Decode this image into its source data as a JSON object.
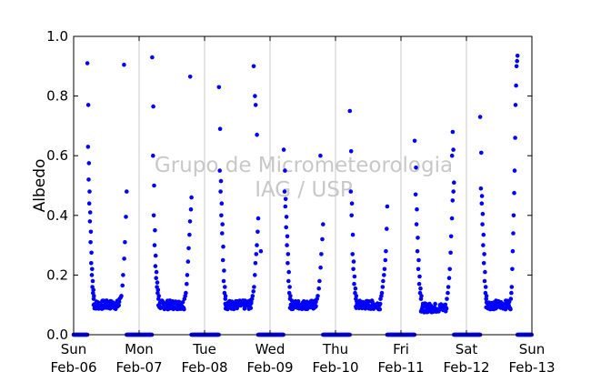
{
  "chart_data": {
    "type": "scatter",
    "ylabel": "Albedo",
    "ylim": [
      0.0,
      1.0
    ],
    "yticks": [
      "0.0",
      "0.2",
      "0.4",
      "0.6",
      "0.8",
      "1.0"
    ],
    "xlim": [
      0,
      7
    ],
    "x_unit": "days from Sun Feb-06",
    "xticks": [
      {
        "day": "Sun",
        "date": "Feb-06"
      },
      {
        "day": "Mon",
        "date": "Feb-07"
      },
      {
        "day": "Tue",
        "date": "Feb-08"
      },
      {
        "day": "Wed",
        "date": "Feb-09"
      },
      {
        "day": "Thu",
        "date": "Feb-10"
      },
      {
        "day": "Fri",
        "date": "Feb-11"
      },
      {
        "day": "Sat",
        "date": "Feb-12"
      },
      {
        "day": "Sun",
        "date": "Feb-13"
      }
    ],
    "grid": "vertical",
    "marker_color": "#0000ff",
    "watermark": [
      "Grupo de Micrometeorologia",
      "IAG / USP"
    ],
    "daytime_curves": [
      {
        "start": 0.21,
        "end": 0.81,
        "left_edge": [
          0.91,
          0.63,
          0.52,
          0.44,
          0.38,
          0.31,
          0.24,
          0.2,
          0.16,
          0.14,
          0.12
        ],
        "floor": 0.1,
        "right_edge": [
          0.12,
          0.13,
          0.2,
          0.31,
          0.48
        ],
        "spikes": [
          {
            "x": 0.77,
            "y": 0.905
          }
        ]
      },
      {
        "start": 1.2,
        "end": 1.8,
        "left_edge": [
          0.93,
          0.6,
          0.4,
          0.3,
          0.23,
          0.19,
          0.16,
          0.14,
          0.12
        ],
        "floor": 0.1,
        "right_edge": [
          0.12,
          0.14,
          0.2,
          0.29,
          0.38,
          0.46
        ],
        "spikes": [
          {
            "x": 1.78,
            "y": 0.865
          }
        ]
      },
      {
        "start": 2.22,
        "end": 2.82,
        "left_edge": [
          0.83,
          0.55,
          0.48,
          0.4,
          0.34,
          0.25,
          0.18,
          0.14,
          0.12
        ],
        "floor": 0.1,
        "right_edge": [
          0.11,
          0.13,
          0.16,
          0.24,
          0.3,
          0.39
        ],
        "spikes": [
          {
            "x": 2.75,
            "y": 0.9
          },
          {
            "x": 2.77,
            "y": 0.8
          },
          {
            "x": 2.78,
            "y": 0.77
          },
          {
            "x": 2.8,
            "y": 0.67
          }
        ]
      },
      {
        "start": 3.21,
        "end": 3.81,
        "left_edge": [
          0.62,
          0.48,
          0.43,
          0.36,
          0.3,
          0.24,
          0.18,
          0.14,
          0.12
        ],
        "floor": 0.1,
        "right_edge": [
          0.11,
          0.13,
          0.18,
          0.27,
          0.37
        ],
        "spikes": [
          {
            "x": 3.77,
            "y": 0.6
          },
          {
            "x": 2.86,
            "y": 0.28
          }
        ]
      },
      {
        "start": 4.22,
        "end": 4.79,
        "left_edge": [
          0.75,
          0.48,
          0.4,
          0.27,
          0.22,
          0.17,
          0.14,
          0.12
        ],
        "floor": 0.1,
        "right_edge": [
          0.12,
          0.14,
          0.18,
          0.22,
          0.28,
          0.43
        ],
        "spikes": []
      },
      {
        "start": 5.21,
        "end": 5.81,
        "left_edge": [
          0.65,
          0.47,
          0.37,
          0.28,
          0.22,
          0.17,
          0.14,
          0.12
        ],
        "floor": 0.09,
        "right_edge": [
          0.12,
          0.16,
          0.22,
          0.33,
          0.45,
          0.51
        ],
        "spikes": [
          {
            "x": 5.79,
            "y": 0.68
          },
          {
            "x": 5.8,
            "y": 0.62
          },
          {
            "x": 5.78,
            "y": 0.6
          }
        ]
      },
      {
        "start": 6.21,
        "end": 6.78,
        "left_edge": [
          0.73,
          0.49,
          0.44,
          0.37,
          0.3,
          0.24,
          0.18,
          0.14,
          0.12
        ],
        "floor": 0.1,
        "right_edge": [
          0.12,
          0.16,
          0.28,
          0.4,
          0.55,
          0.77,
          0.9,
          0.935
        ],
        "spikes": []
      }
    ],
    "night_value": 0.0
  }
}
